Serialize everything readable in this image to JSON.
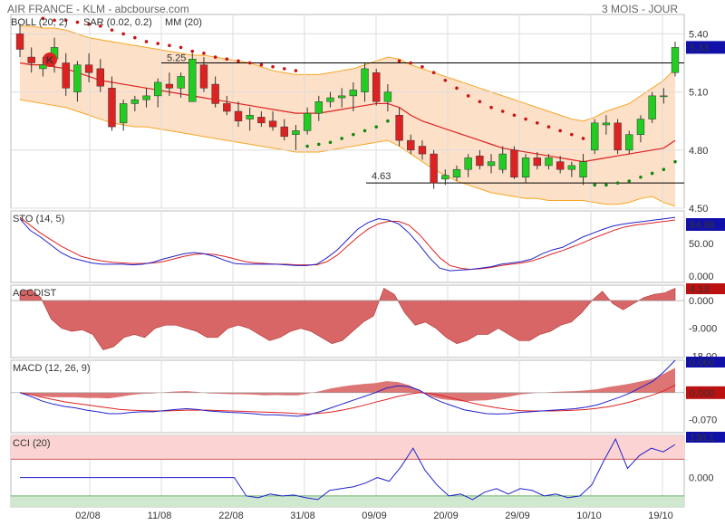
{
  "header": {
    "title": "AIR FRANCE - KLM - abcbourse.com",
    "period": "3 MOIS - JOUR"
  },
  "legends": {
    "boll": "BOLL (20, 2)",
    "sar": "SAR (0.02, 0.2)",
    "mm": "MM (20)",
    "sto": "STO (14, 5)",
    "accdist": "ACCDIST",
    "macd": "MACD (12, 26, 9)",
    "cci": "CCI (20)"
  },
  "colors": {
    "up": "#22cc22",
    "down": "#dd2222",
    "band_fill": "#fde0c8",
    "band_line": "#f5a623",
    "mm_line": "#dd2222",
    "sar_dot": "#cc1111",
    "sar_dot_low": "#118811",
    "blue_line": "#2222cc",
    "red_line": "#dd2222",
    "accdist_fill": "#d96666",
    "cci_upper": "#fbd3d3",
    "cci_lower": "#cfe8cf",
    "label_blue": "#1111aa",
    "label_red": "#bb1111"
  },
  "markers": {
    "k_badge": "K",
    "resistance_label": "5.25",
    "support_label": "4.63"
  },
  "chart_data": [
    {
      "type": "candlestick",
      "title": "AIR FRANCE - KLM",
      "x": [
        "02/08",
        "11/08",
        "22/08",
        "31/08",
        "09/09",
        "20/09",
        "29/09",
        "10/10",
        "19/10"
      ],
      "ylim": [
        4.5,
        5.5
      ],
      "yticks": [
        5.4,
        5.1,
        4.8,
        4.5
      ],
      "last_value": "5.33",
      "resistance": 5.25,
      "support": 4.63,
      "candles": [
        [
          5.4,
          5.45,
          5.28,
          5.32
        ],
        [
          5.28,
          5.33,
          5.2,
          5.25
        ],
        [
          5.22,
          5.28,
          5.18,
          5.24
        ],
        [
          5.27,
          5.38,
          5.2,
          5.33
        ],
        [
          5.25,
          5.3,
          5.08,
          5.12
        ],
        [
          5.1,
          5.26,
          5.05,
          5.24
        ],
        [
          5.24,
          5.3,
          5.15,
          5.2
        ],
        [
          5.22,
          5.27,
          5.1,
          5.13
        ],
        [
          5.12,
          5.18,
          4.9,
          4.92
        ],
        [
          4.94,
          5.06,
          4.9,
          5.04
        ],
        [
          5.04,
          5.08,
          5.0,
          5.06
        ],
        [
          5.06,
          5.12,
          5.02,
          5.08
        ],
        [
          5.08,
          5.17,
          5.02,
          5.15
        ],
        [
          5.14,
          5.2,
          5.08,
          5.12
        ],
        [
          5.12,
          5.2,
          5.07,
          5.18
        ],
        [
          5.05,
          5.3,
          5.05,
          5.27
        ],
        [
          5.24,
          5.28,
          5.1,
          5.12
        ],
        [
          5.14,
          5.18,
          5.02,
          5.04
        ],
        [
          5.04,
          5.08,
          4.98,
          5.0
        ],
        [
          5.0,
          5.05,
          4.92,
          4.95
        ],
        [
          4.96,
          5.02,
          4.9,
          4.98
        ],
        [
          4.97,
          5.0,
          4.92,
          4.94
        ],
        [
          4.95,
          5.0,
          4.9,
          4.92
        ],
        [
          4.92,
          4.96,
          4.85,
          4.87
        ],
        [
          4.88,
          4.93,
          4.8,
          4.9
        ],
        [
          4.9,
          5.02,
          4.88,
          4.99
        ],
        [
          4.99,
          5.08,
          4.95,
          5.05
        ],
        [
          5.05,
          5.1,
          5.02,
          5.07
        ],
        [
          5.07,
          5.12,
          5.02,
          5.08
        ],
        [
          5.08,
          5.15,
          5.0,
          5.11
        ],
        [
          5.1,
          5.25,
          5.05,
          5.22
        ],
        [
          5.2,
          5.22,
          5.03,
          5.05
        ],
        [
          5.05,
          5.14,
          5.0,
          5.1
        ],
        [
          4.98,
          5.02,
          4.82,
          4.85
        ],
        [
          4.85,
          4.88,
          4.78,
          4.8
        ],
        [
          4.82,
          4.85,
          4.75,
          4.78
        ],
        [
          4.78,
          4.8,
          4.6,
          4.63
        ],
        [
          4.65,
          4.7,
          4.62,
          4.67
        ],
        [
          4.66,
          4.72,
          4.64,
          4.7
        ],
        [
          4.7,
          4.78,
          4.66,
          4.76
        ],
        [
          4.77,
          4.8,
          4.7,
          4.72
        ],
        [
          4.72,
          4.78,
          4.68,
          4.74
        ],
        [
          4.7,
          4.82,
          4.68,
          4.78
        ],
        [
          4.8,
          4.82,
          4.65,
          4.66
        ],
        [
          4.66,
          4.78,
          4.63,
          4.76
        ],
        [
          4.76,
          4.79,
          4.7,
          4.72
        ],
        [
          4.72,
          4.78,
          4.7,
          4.76
        ],
        [
          4.74,
          4.77,
          4.68,
          4.7
        ],
        [
          4.7,
          4.74,
          4.66,
          4.72
        ],
        [
          4.66,
          4.78,
          4.62,
          4.74
        ],
        [
          4.8,
          4.96,
          4.78,
          4.94
        ],
        [
          4.93,
          4.98,
          4.88,
          4.94
        ],
        [
          4.94,
          4.96,
          4.78,
          4.8
        ],
        [
          4.8,
          4.9,
          4.78,
          4.88
        ],
        [
          4.88,
          4.98,
          4.84,
          4.96
        ],
        [
          4.96,
          5.1,
          4.94,
          5.08
        ],
        [
          5.08,
          5.12,
          5.04,
          5.08
        ],
        [
          5.2,
          5.36,
          5.18,
          5.33
        ]
      ],
      "boll_upper": [
        5.44,
        5.44,
        5.43,
        5.43,
        5.42,
        5.4,
        5.38,
        5.37,
        5.36,
        5.35,
        5.34,
        5.33,
        5.32,
        5.31,
        5.3,
        5.29,
        5.29,
        5.28,
        5.27,
        5.26,
        5.25,
        5.23,
        5.21,
        5.2,
        5.19,
        5.19,
        5.19,
        5.2,
        5.21,
        5.22,
        5.24,
        5.26,
        5.28,
        5.27,
        5.24,
        5.22,
        5.2,
        5.18,
        5.16,
        5.14,
        5.12,
        5.1,
        5.08,
        5.06,
        5.04,
        5.02,
        5.0,
        4.98,
        4.96,
        4.95,
        4.97,
        5.0,
        5.02,
        5.04,
        5.08,
        5.12,
        5.16,
        5.22
      ],
      "boll_lower": [
        5.06,
        5.05,
        5.04,
        5.03,
        5.02,
        5.0,
        4.98,
        4.96,
        4.94,
        4.93,
        4.92,
        4.92,
        4.91,
        4.9,
        4.89,
        4.88,
        4.87,
        4.86,
        4.85,
        4.84,
        4.83,
        4.82,
        4.81,
        4.8,
        4.79,
        4.79,
        4.79,
        4.8,
        4.81,
        4.82,
        4.83,
        4.84,
        4.85,
        4.82,
        4.78,
        4.74,
        4.7,
        4.67,
        4.64,
        4.62,
        4.6,
        4.58,
        4.57,
        4.56,
        4.55,
        4.55,
        4.54,
        4.54,
        4.54,
        4.54,
        4.53,
        4.52,
        4.52,
        4.53,
        4.55,
        4.56,
        4.53,
        4.51
      ],
      "mm": [
        5.25,
        5.24,
        5.24,
        5.23,
        5.22,
        5.2,
        5.18,
        5.16,
        5.15,
        5.14,
        5.13,
        5.12,
        5.11,
        5.1,
        5.09,
        5.08,
        5.07,
        5.06,
        5.05,
        5.04,
        5.03,
        5.02,
        5.01,
        5.0,
        4.99,
        4.99,
        4.99,
        5.0,
        5.01,
        5.02,
        5.03,
        5.04,
        5.04,
        5.02,
        4.98,
        4.95,
        4.93,
        4.91,
        4.89,
        4.87,
        4.85,
        4.83,
        4.81,
        4.8,
        4.79,
        4.78,
        4.77,
        4.76,
        4.75,
        4.74,
        4.75,
        4.76,
        4.77,
        4.78,
        4.79,
        4.8,
        4.81,
        4.85
      ],
      "sar": [
        null,
        null,
        5.48,
        5.47,
        5.47,
        5.46,
        5.45,
        5.44,
        5.42,
        5.4,
        5.38,
        5.36,
        5.35,
        5.34,
        5.33,
        5.31,
        5.3,
        5.28,
        5.27,
        5.26,
        5.25,
        5.24,
        5.23,
        5.22,
        5.21,
        4.82,
        4.83,
        4.84,
        4.86,
        4.88,
        4.9,
        4.92,
        4.95,
        5.26,
        5.25,
        5.23,
        5.2,
        5.16,
        5.12,
        5.08,
        5.05,
        5.02,
        5.0,
        4.98,
        4.96,
        4.94,
        4.92,
        4.9,
        4.88,
        4.86,
        4.62,
        4.62,
        4.63,
        4.64,
        4.66,
        4.68,
        4.7,
        4.74
      ],
      "sar_above": [
        true,
        true,
        true,
        true,
        true,
        true,
        true,
        true,
        true,
        true,
        true,
        true,
        true,
        true,
        true,
        true,
        true,
        true,
        true,
        true,
        true,
        true,
        true,
        true,
        true,
        false,
        false,
        false,
        false,
        false,
        false,
        false,
        false,
        true,
        true,
        true,
        true,
        true,
        true,
        true,
        true,
        true,
        true,
        true,
        true,
        true,
        true,
        true,
        true,
        true,
        false,
        false,
        false,
        false,
        false,
        false,
        false,
        false
      ]
    },
    {
      "type": "line",
      "title": "STO (14, 5)",
      "ylim": [
        -10,
        100
      ],
      "yticks": [
        50.0,
        0.0
      ],
      "last_value": "84.88",
      "series": [
        {
          "values": [
            88,
            70,
            60,
            48,
            36,
            28,
            24,
            20,
            18,
            18,
            18,
            17,
            18,
            21,
            26,
            30,
            34,
            36,
            34,
            30,
            24,
            19,
            18,
            18,
            18,
            18,
            17,
            16,
            16,
            18,
            28,
            40,
            56,
            72,
            82,
            88,
            86,
            80,
            66,
            48,
            28,
            12,
            8,
            9,
            10,
            12,
            14,
            18,
            20,
            22,
            26,
            34,
            40,
            44,
            52,
            60,
            66,
            72,
            77,
            80,
            82,
            84,
            86,
            88,
            90
          ]
        },
        {
          "values": [
            90,
            78,
            66,
            56,
            46,
            38,
            30,
            26,
            23,
            21,
            20,
            19,
            19,
            20,
            22,
            26,
            30,
            33,
            34,
            33,
            30,
            26,
            22,
            20,
            19,
            18,
            18,
            17,
            17,
            17,
            22,
            32,
            46,
            60,
            72,
            80,
            84,
            84,
            78,
            64,
            46,
            28,
            16,
            12,
            10,
            11,
            13,
            16,
            18,
            20,
            23,
            28,
            34,
            39,
            45,
            51,
            58,
            64,
            70,
            75,
            78,
            80,
            82,
            84,
            86
          ]
        }
      ]
    },
    {
      "type": "area",
      "title": "ACCDIST",
      "ylim": [
        -18.5,
        5
      ],
      "yticks": [
        0.0,
        -9.0,
        -18.0
      ],
      "last_value": "4.13",
      "values": [
        3,
        3.5,
        1,
        -6,
        -9,
        -10,
        -9.5,
        -11,
        -16,
        -15,
        -12,
        -11,
        -12,
        -9,
        -8,
        -8,
        -9,
        -10,
        -12,
        -12,
        -9,
        -8,
        -9,
        -11,
        -13,
        -12,
        -10,
        -9,
        -10,
        -12,
        -14,
        -13,
        -10,
        -7,
        -5,
        4,
        2,
        -4,
        -8,
        -7,
        -9,
        -12,
        -14,
        -13,
        -11,
        -11,
        -9,
        -11,
        -13,
        -13,
        -11,
        -10,
        -8,
        -7,
        -4,
        0,
        3,
        -1,
        -3,
        -1,
        1,
        2,
        2.5,
        4
      ]
    },
    {
      "type": "area",
      "title": "MACD (12, 26, 9)",
      "ylim": [
        -0.105,
        0.085
      ],
      "yticks": [
        0.0,
        -0.07
      ],
      "last_value": "0.000",
      "last_value_top": "0.060",
      "macd": [
        0.0,
        -0.01,
        -0.022,
        -0.03,
        -0.036,
        -0.04,
        -0.046,
        -0.05,
        -0.055,
        -0.055,
        -0.052,
        -0.05,
        -0.05,
        -0.047,
        -0.044,
        -0.042,
        -0.044,
        -0.048,
        -0.05,
        -0.052,
        -0.053,
        -0.055,
        -0.058,
        -0.058,
        -0.06,
        -0.062,
        -0.058,
        -0.05,
        -0.04,
        -0.03,
        -0.02,
        -0.01,
        0.0,
        0.012,
        0.018,
        0.016,
        0.006,
        -0.012,
        -0.025,
        -0.035,
        -0.045,
        -0.05,
        -0.055,
        -0.056,
        -0.055,
        -0.052,
        -0.05,
        -0.048,
        -0.046,
        -0.044,
        -0.042,
        -0.038,
        -0.032,
        -0.022,
        -0.012,
        0.0,
        0.015,
        0.03,
        0.055,
        0.085
      ],
      "signal": [
        0.0,
        -0.005,
        -0.012,
        -0.018,
        -0.024,
        -0.028,
        -0.032,
        -0.036,
        -0.04,
        -0.044,
        -0.046,
        -0.047,
        -0.048,
        -0.048,
        -0.047,
        -0.046,
        -0.046,
        -0.046,
        -0.047,
        -0.048,
        -0.049,
        -0.05,
        -0.051,
        -0.052,
        -0.053,
        -0.055,
        -0.056,
        -0.054,
        -0.051,
        -0.046,
        -0.04,
        -0.033,
        -0.025,
        -0.018,
        -0.01,
        -0.004,
        0.0,
        -0.002,
        -0.008,
        -0.015,
        -0.022,
        -0.029,
        -0.035,
        -0.04,
        -0.044,
        -0.047,
        -0.048,
        -0.048,
        -0.048,
        -0.047,
        -0.046,
        -0.044,
        -0.041,
        -0.037,
        -0.031,
        -0.024,
        -0.015,
        -0.006,
        0.005,
        0.02
      ]
    },
    {
      "type": "line",
      "title": "CCI (20)",
      "ylim": [
        -160,
        230
      ],
      "yticks": [
        0.0
      ],
      "last_value": "138.1",
      "upper_zone": 100,
      "lower_zone": -100,
      "values": [
        0,
        0,
        0,
        0,
        0,
        0,
        0,
        0,
        0,
        0,
        0,
        0,
        0,
        0,
        0,
        0,
        0,
        0,
        0,
        -100,
        -110,
        -90,
        -100,
        -95,
        -110,
        -120,
        -70,
        -60,
        -50,
        -30,
        0,
        -20,
        60,
        160,
        40,
        -40,
        -100,
        -90,
        -120,
        -80,
        -60,
        -90,
        -60,
        -70,
        -100,
        -90,
        -110,
        -100,
        -40,
        90,
        210,
        50,
        120,
        160,
        140,
        180
      ]
    }
  ]
}
